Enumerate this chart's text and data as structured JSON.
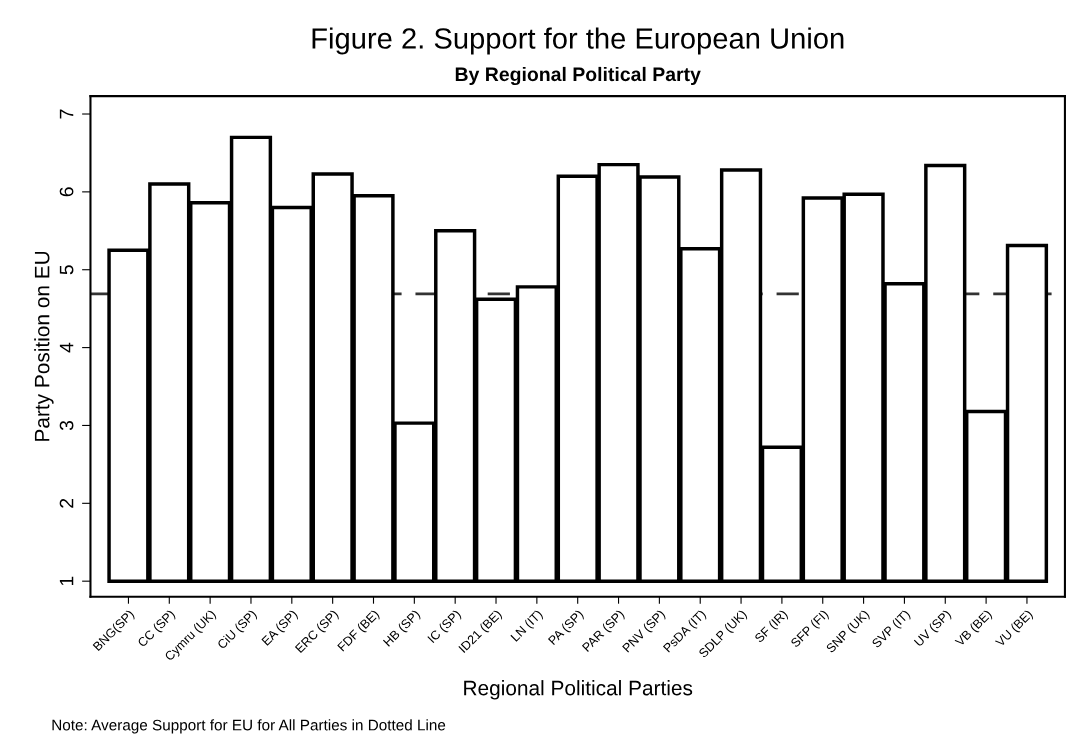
{
  "chart_data": {
    "type": "bar",
    "title": "Figure 2. Support for the European Union",
    "subtitle": "By Regional Political Party",
    "xlabel": "Regional Political Parties",
    "ylabel": "Party Position on EU",
    "categories": [
      "BNG(SP)",
      "CC (SP)",
      "Cymru (UK)",
      "CiU (SP)",
      "EA (SP)",
      "ERC (SP)",
      "FDF (BE)",
      "HB (SP)",
      "IC (SP)",
      "ID21 (BE)",
      "LN (IT)",
      "PA (SP)",
      "PAR (SP)",
      "PNV (SP)",
      "PsDA (IT)",
      "SDLP (UK)",
      "SF (IR)",
      "SFP (FI)",
      "SNP (UK)",
      "SVP (IT)",
      "UV (SP)",
      "VB (BE)",
      "VU (BE)"
    ],
    "base": [
      1,
      1,
      1,
      1,
      1,
      1,
      1,
      1,
      1,
      1,
      1,
      1,
      1,
      1,
      1,
      1,
      1,
      1,
      1,
      1,
      1,
      1,
      1
    ],
    "values": [
      4.25,
      5.1,
      4.86,
      5.7,
      4.8,
      5.23,
      4.95,
      2.03,
      4.5,
      3.62,
      3.78,
      5.2,
      5.35,
      5.19,
      4.27,
      5.28,
      1.72,
      4.92,
      4.97,
      3.82,
      5.34,
      2.18,
      4.31
    ],
    "color": "#ffffff",
    "ylim": [
      0.8,
      7.23
    ],
    "yticks": [
      1,
      2,
      3,
      4,
      5,
      6,
      7
    ],
    "ref_lines": [
      {
        "axis": "y",
        "value": 4.69,
        "color": "#333333",
        "line_style": "dashed"
      }
    ],
    "annotations": [
      "Note: Average Support for EU for All Parties in Dotted Line"
    ],
    "grid": false,
    "legend": false
  }
}
